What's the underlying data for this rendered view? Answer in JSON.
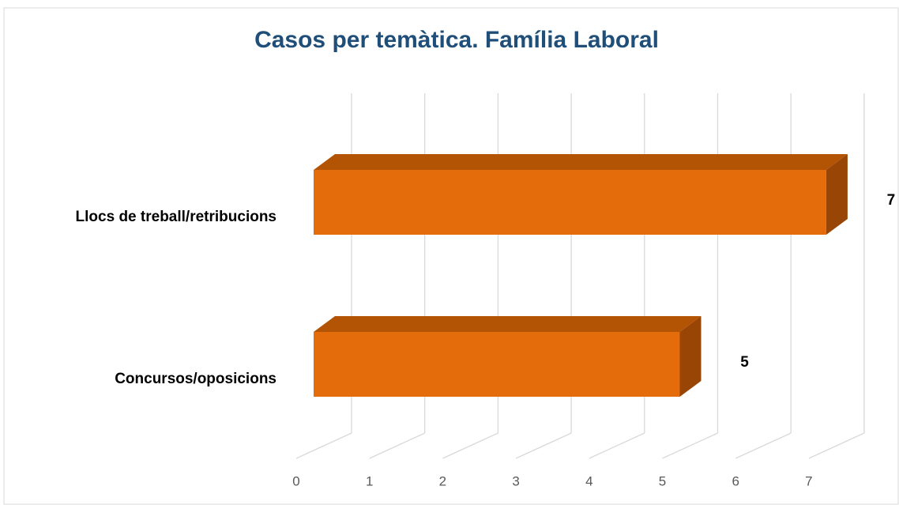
{
  "chart_data": {
    "type": "bar3d",
    "orientation": "horizontal",
    "title": "Casos per temàtica. Família Laboral",
    "categories": [
      "Llocs de treball/retribucions",
      "Concursos/oposicions"
    ],
    "values": [
      7,
      5
    ],
    "color": "#e46c0a",
    "xlim": [
      0,
      7
    ],
    "xticks": [
      0,
      1,
      2,
      3,
      4,
      5,
      6,
      7
    ],
    "grid": true
  }
}
